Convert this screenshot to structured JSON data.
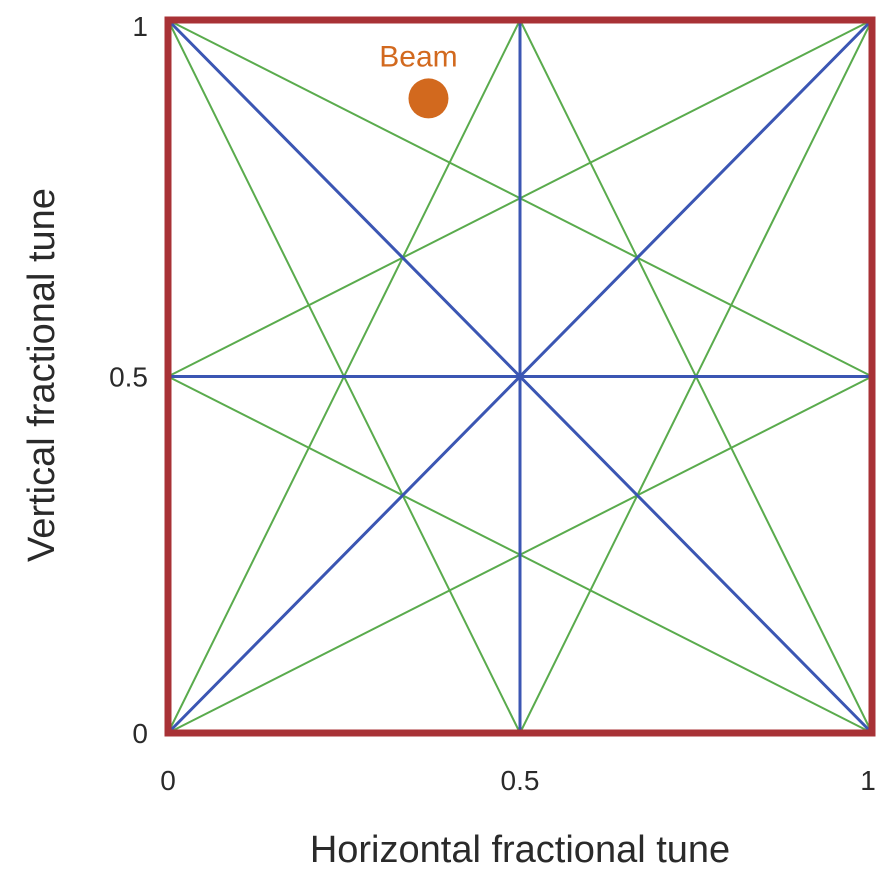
{
  "diagram": {
    "xlabel": "Horizontal fractional tune",
    "ylabel": "Vertical fractional tune",
    "x_ticks": [
      {
        "value": 0,
        "label": "0"
      },
      {
        "value": 0.5,
        "label": "0.5"
      },
      {
        "value": 1,
        "label": "1"
      }
    ],
    "y_ticks": [
      {
        "value": 0,
        "label": "0"
      },
      {
        "value": 0.5,
        "label": "0.5"
      },
      {
        "value": 1,
        "label": "1"
      }
    ],
    "xlim": [
      0,
      1
    ],
    "ylim": [
      0,
      1
    ],
    "beam": {
      "label": "Beam",
      "x": 0.37,
      "y": 0.89
    },
    "colors": {
      "frame": "#a83236",
      "second_order": "#3b56b3",
      "fourth_order": "#5aab4d",
      "beam": "#d2691e",
      "text": "#2a2a2a"
    },
    "second_order_lines": [
      {
        "x1": 0,
        "y1": 0,
        "x2": 1,
        "y2": 1
      },
      {
        "x1": 0,
        "y1": 1,
        "x2": 1,
        "y2": 0
      },
      {
        "x1": 0.5,
        "y1": 0,
        "x2": 0.5,
        "y2": 1
      },
      {
        "x1": 0,
        "y1": 0.5,
        "x2": 1,
        "y2": 0.5
      }
    ],
    "fourth_order_lines": [
      {
        "x1": 0,
        "y1": 0,
        "x2": 0.5,
        "y2": 1
      },
      {
        "x1": 0.5,
        "y1": 1,
        "x2": 1,
        "y2": 0
      },
      {
        "x1": 0,
        "y1": 1,
        "x2": 0.5,
        "y2": 0
      },
      {
        "x1": 0.5,
        "y1": 0,
        "x2": 1,
        "y2": 1
      },
      {
        "x1": 0,
        "y1": 0,
        "x2": 1,
        "y2": 0.5
      },
      {
        "x1": 0,
        "y1": 0.5,
        "x2": 1,
        "y2": 0
      },
      {
        "x1": 0,
        "y1": 0.5,
        "x2": 1,
        "y2": 1
      },
      {
        "x1": 0,
        "y1": 1,
        "x2": 1,
        "y2": 0.5
      }
    ]
  }
}
